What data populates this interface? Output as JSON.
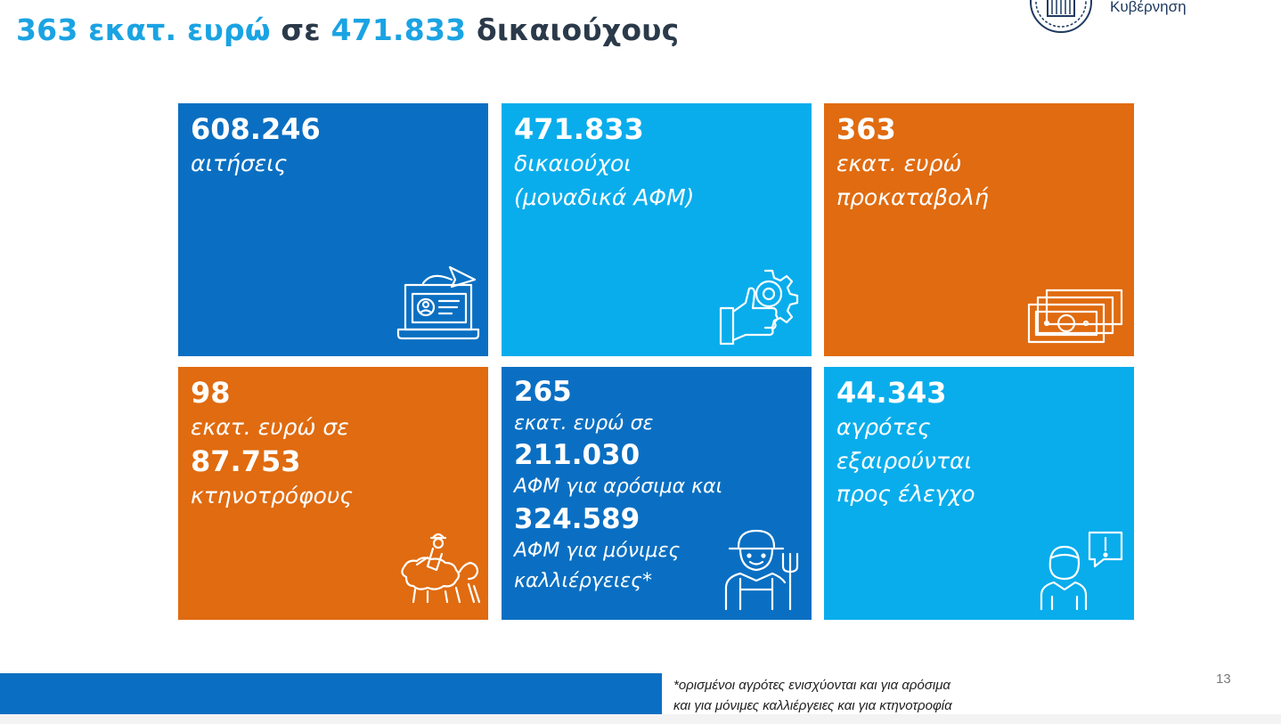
{
  "header": {
    "title_part1": "363 εκατ. ευρώ",
    "title_part2": " σε ",
    "title_part3": "471.833",
    "title_part4": " δικαιούχους",
    "gov_label": "Κυβέρνηση"
  },
  "tiles": [
    {
      "number": "608.246",
      "line1": "αιτήσεις",
      "icon": "laptop-application-icon"
    },
    {
      "number": "471.833",
      "line1": "δικαιούχοι",
      "line2": "(μοναδικά ΑΦΜ)",
      "icon": "thumbs-up-gear-icon"
    },
    {
      "number": "363",
      "line1": "εκατ. ευρώ",
      "line2": "προκαταβολή",
      "icon": "banknotes-icon"
    },
    {
      "number": "98",
      "line1": "εκατ. ευρώ σε",
      "number2": "87.753",
      "line2": "κτηνοτρόφους",
      "icon": "shepherd-sheep-icon"
    },
    {
      "number": "265",
      "line1": "εκατ. ευρώ σε",
      "number2": "211.030",
      "line2": "ΑΦΜ για αρόσιμα και",
      "number3": "324.589",
      "line3": "ΑΦΜ για μόνιμες",
      "line4": "καλλιέργειες*",
      "icon": "farmer-pitchfork-icon"
    },
    {
      "number": "44.343",
      "line1": "αγρότες",
      "line2": "εξαιρούνται",
      "line3": "προς έλεγχο",
      "icon": "person-alert-icon"
    }
  ],
  "footer": {
    "note_line1": "*ορισμένοι αγρότες ενισχύονται και για αρόσιμα",
    "note_line2": "και για μόνιμες καλλιέργειες και για κτηνοτροφία",
    "page_number": "13"
  },
  "colors": {
    "dark_blue": "#0a6fc2",
    "light_blue": "#09adec",
    "orange": "#e06b10",
    "title_highlight": "#1aa3e3",
    "title_dark": "#2b3a4a"
  }
}
